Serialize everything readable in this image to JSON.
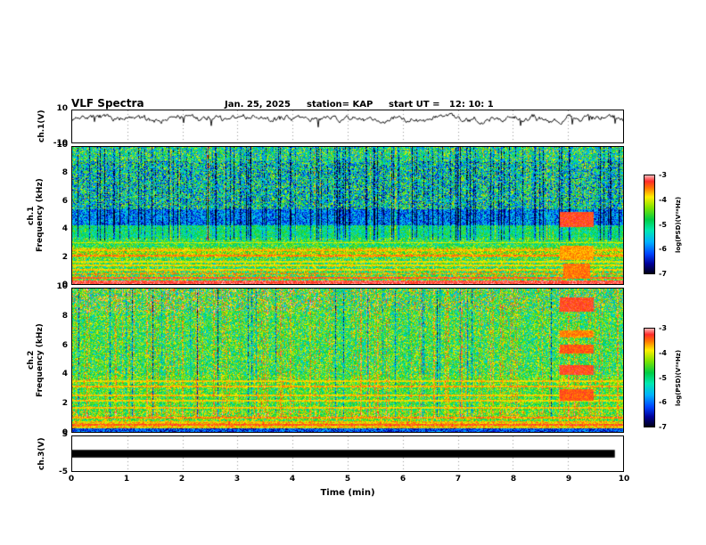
{
  "chart_data": {
    "type": "spectrogram-multipanel",
    "title": "VLF Spectra",
    "date": "Jan. 25, 2025",
    "station": "station= KAP",
    "start_ut": "start UT =   12: 10: 1",
    "xlabel": "Time (min)",
    "xlim": [
      0,
      10
    ],
    "xticks": [
      0,
      1,
      2,
      3,
      4,
      5,
      6,
      7,
      8,
      9,
      10
    ],
    "colorbar": {
      "label": "log(PSD)(V²*Hz)",
      "ticks": [
        -3,
        -4,
        -5,
        -6,
        -7
      ],
      "lim": [
        -7,
        -3
      ],
      "stops": [
        [
          0,
          "#000018"
        ],
        [
          0.1,
          "#000099"
        ],
        [
          0.2,
          "#0044ff"
        ],
        [
          0.32,
          "#00b0ff"
        ],
        [
          0.44,
          "#00e8b0"
        ],
        [
          0.55,
          "#00cc44"
        ],
        [
          0.67,
          "#7fe400"
        ],
        [
          0.78,
          "#ffee00"
        ],
        [
          0.87,
          "#ff7700"
        ],
        [
          0.94,
          "#ff2a2a"
        ],
        [
          1,
          "#ffb8b8"
        ]
      ]
    },
    "panels": [
      {
        "name": "ch1-voltage",
        "type": "line",
        "ylabel": "ch.1(V)",
        "ylim": [
          -10,
          10
        ],
        "yticks": [
          10,
          -10
        ],
        "seed": 7,
        "signal": {
          "mean": 5.0,
          "swing": 3.0,
          "description": "irregular noisy voltage trace oscillating around +5 V"
        }
      },
      {
        "name": "ch1-spectrogram",
        "type": "heatmap",
        "ylabel": [
          "ch.1",
          "Frequency (kHz)"
        ],
        "ylim": [
          0,
          10
        ],
        "yticks": [
          10,
          8,
          6,
          4,
          2,
          0
        ],
        "seed": 11,
        "bands": [
          [
            0,
            0.3,
            0.95,
            0.05
          ],
          [
            0.3,
            1,
            0.63,
            0.28
          ],
          [
            1,
            2,
            0.58,
            0.24
          ],
          [
            2,
            2.7,
            0.7,
            0.18
          ],
          [
            2.7,
            3.4,
            0.56,
            0.2
          ],
          [
            3.4,
            4.3,
            0.5,
            0.16
          ],
          [
            4.3,
            5.5,
            0.26,
            0.18
          ],
          [
            5.5,
            9,
            0.43,
            0.34
          ],
          [
            9,
            10.01,
            0.5,
            0.3
          ]
        ],
        "hlines": [
          [
            0.5,
            0.9
          ],
          [
            0.78,
            0.84
          ],
          [
            1.08,
            0.8
          ],
          [
            1.38,
            0.78
          ],
          [
            1.68,
            0.76
          ],
          [
            2.12,
            0.86
          ],
          [
            2.48,
            0.8
          ],
          [
            3.05,
            0.74
          ]
        ],
        "vstripes": {
          "dark_prob": 0.16,
          "dark_delta": -0.3,
          "bright_prob": 0.05,
          "bright_delta": 0.18,
          "fmin": 3.2
        },
        "events": [
          [
            8.85,
            9.45,
            4.2,
            5.3,
            0.92
          ],
          [
            8.85,
            9.45,
            1.8,
            2.8,
            0.84
          ],
          [
            8.9,
            9.4,
            0.4,
            1.5,
            0.87
          ]
        ]
      },
      {
        "name": "ch2-spectrogram",
        "type": "heatmap",
        "ylabel": [
          "ch.2",
          "Frequency (kHz)"
        ],
        "ylim": [
          0,
          10
        ],
        "yticks": [
          10,
          8,
          6,
          4,
          2,
          0
        ],
        "seed": 23,
        "bands": [
          [
            0,
            0.3,
            0.2,
            0.15
          ],
          [
            0.3,
            0.8,
            0.8,
            0.12
          ],
          [
            0.8,
            1.5,
            0.64,
            0.22
          ],
          [
            1.5,
            3,
            0.58,
            0.2
          ],
          [
            3,
            4,
            0.6,
            0.2
          ],
          [
            4,
            8.5,
            0.56,
            0.24
          ],
          [
            8.5,
            10.01,
            0.57,
            0.3
          ]
        ],
        "hlines": [
          [
            0.55,
            0.9
          ],
          [
            1.0,
            0.85
          ],
          [
            1.7,
            0.8
          ],
          [
            2.2,
            0.78
          ],
          [
            2.6,
            0.8
          ],
          [
            3.2,
            0.82
          ],
          [
            3.6,
            0.78
          ]
        ],
        "vstripes": {
          "dark_prob": 0.04,
          "dark_delta": -0.26,
          "bright_prob": 0.24,
          "bright_delta": 0.16,
          "fmin": 1.0
        },
        "hot": {
          "t1": 4.5,
          "f0": 8.3,
          "prob": 0.1,
          "delta": 0.32
        },
        "events": [
          [
            8.85,
            9.45,
            8.4,
            9.4,
            0.92
          ],
          [
            8.85,
            9.45,
            6.6,
            7.1,
            0.86
          ],
          [
            8.85,
            9.45,
            5.5,
            6.1,
            0.9
          ],
          [
            8.85,
            9.45,
            4.0,
            4.7,
            0.92
          ],
          [
            8.85,
            9.45,
            2.2,
            3.0,
            0.9
          ]
        ]
      },
      {
        "name": "ch3-voltage",
        "type": "line",
        "ylabel": "ch.3(V)",
        "ylim": [
          -5,
          5
        ],
        "yticks": [
          5,
          -5
        ],
        "seed": 3,
        "signal": {
          "type": "saturated",
          "v0": -1.1,
          "v1": 1.1,
          "t0": 0,
          "t1": 9.85,
          "description": "flat saturated signal rendered as a thick black bar near 0 V"
        }
      }
    ]
  }
}
